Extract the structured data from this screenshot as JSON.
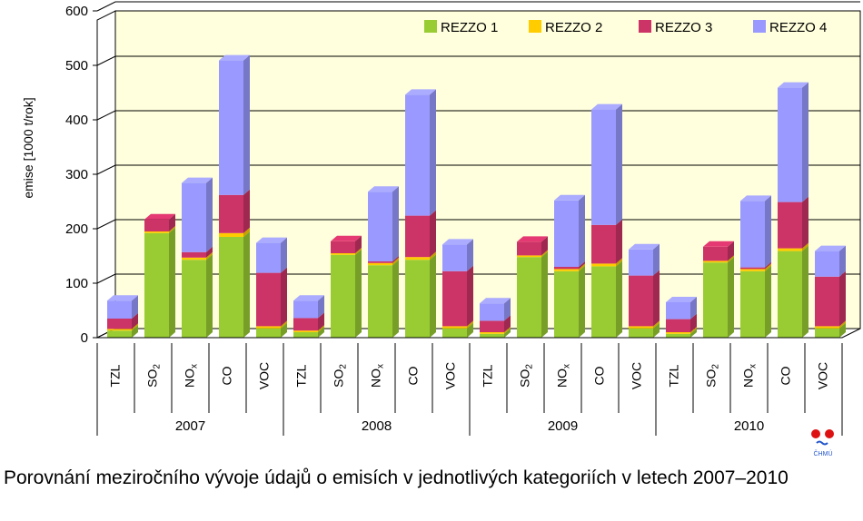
{
  "caption": "Porovnání meziročního vývoje údajů o emisích v jednotlivých kategoriích v letech 2007–2010",
  "logo_text": "ČHMÚ",
  "chart_data": {
    "type": "bar",
    "stacked": true,
    "ylabel": "emise [1000 t/rok]",
    "ylim": [
      0,
      600
    ],
    "yticks": [
      0,
      100,
      200,
      300,
      400,
      500,
      600
    ],
    "grid": true,
    "legend_position": "top-right",
    "categories": [
      {
        "group": "2007",
        "label": "TZL"
      },
      {
        "group": "2007",
        "label": "SO",
        "sub": "2"
      },
      {
        "group": "2007",
        "label": "NO",
        "sub": "x"
      },
      {
        "group": "2007",
        "label": "CO"
      },
      {
        "group": "2007",
        "label": "VOC"
      },
      {
        "group": "2008",
        "label": "TZL"
      },
      {
        "group": "2008",
        "label": "SO",
        "sub": "2"
      },
      {
        "group": "2008",
        "label": "NO",
        "sub": "x"
      },
      {
        "group": "2008",
        "label": "CO"
      },
      {
        "group": "2008",
        "label": "VOC"
      },
      {
        "group": "2009",
        "label": "TZL"
      },
      {
        "group": "2009",
        "label": "SO",
        "sub": "2"
      },
      {
        "group": "2009",
        "label": "NO",
        "sub": "x"
      },
      {
        "group": "2009",
        "label": "CO"
      },
      {
        "group": "2009",
        "label": "VOC"
      },
      {
        "group": "2010",
        "label": "TZL"
      },
      {
        "group": "2010",
        "label": "SO",
        "sub": "2"
      },
      {
        "group": "2010",
        "label": "NO",
        "sub": "x"
      },
      {
        "group": "2010",
        "label": "CO"
      },
      {
        "group": "2010",
        "label": "VOC"
      }
    ],
    "groups": [
      "2007",
      "2008",
      "2009",
      "2010"
    ],
    "series": [
      {
        "name": "REZZO 1",
        "color": "#99cc33",
        "values": [
          13,
          192,
          143,
          185,
          17,
          10,
          152,
          133,
          143,
          17,
          7,
          148,
          122,
          131,
          17,
          7,
          138,
          122,
          159,
          17
        ]
      },
      {
        "name": "REZZO 2",
        "color": "#ffcc00",
        "values": [
          3,
          3,
          4,
          7,
          4,
          3,
          3,
          4,
          5,
          4,
          3,
          3,
          4,
          5,
          4,
          3,
          3,
          4,
          5,
          4
        ]
      },
      {
        "name": "REZZO 3",
        "color": "#cc3366",
        "values": [
          19,
          22,
          10,
          70,
          98,
          23,
          22,
          3,
          76,
          101,
          21,
          25,
          4,
          71,
          93,
          24,
          26,
          3,
          85,
          91
        ]
      },
      {
        "name": "REZZO 4",
        "color": "#9999ff",
        "values": [
          33,
          0,
          127,
          247,
          55,
          32,
          0,
          128,
          222,
          49,
          32,
          0,
          122,
          212,
          48,
          31,
          0,
          122,
          210,
          47
        ]
      }
    ]
  }
}
